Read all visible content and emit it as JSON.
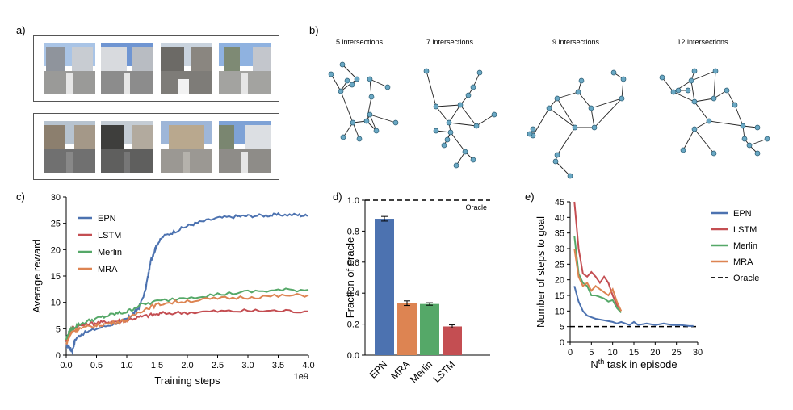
{
  "panels": {
    "a": {
      "label": "a)"
    },
    "b": {
      "label": "b)"
    },
    "c": {
      "label": "c)"
    },
    "d": {
      "label": "d)"
    },
    "e": {
      "label": "e)"
    }
  },
  "graphs": [
    {
      "title": "5 intersections"
    },
    {
      "title": "7 intersections"
    },
    {
      "title": "9 intersections"
    },
    {
      "title": "12 intersections"
    }
  ],
  "colors": {
    "EPN": "#4c72b0",
    "LSTM": "#c44e52",
    "Merlin": "#55a868",
    "MRA": "#dd8452",
    "node": "#6aa8c4"
  },
  "chart_data": [
    {
      "id": "c",
      "type": "line",
      "xlabel": "Training steps",
      "ylabel": "Average reward",
      "x_scale_label": "1e9",
      "xlim": [
        0,
        4.0
      ],
      "ylim": [
        0,
        30
      ],
      "xticks": [
        "0.0",
        "0.5",
        "1.0",
        "1.5",
        "2.0",
        "2.5",
        "3.0",
        "3.5",
        "4.0"
      ],
      "yticks": [
        "0",
        "5",
        "10",
        "15",
        "20",
        "25",
        "30"
      ],
      "legend": [
        "EPN",
        "LSTM",
        "Merlin",
        "MRA"
      ],
      "series": [
        {
          "name": "EPN",
          "x": [
            0,
            0.05,
            0.1,
            0.15,
            0.25,
            0.5,
            0.8,
            1.0,
            1.1,
            1.2,
            1.3,
            1.35,
            1.4,
            1.45,
            1.5,
            1.6,
            1.8,
            2.0,
            2.2,
            2.5,
            2.8,
            3.0,
            3.3,
            3.5,
            3.8,
            4.0
          ],
          "y": [
            2,
            1.5,
            0.8,
            3,
            4,
            5,
            6,
            6.8,
            7.8,
            9,
            12,
            15,
            18,
            19.5,
            21,
            22.5,
            23.5,
            24.5,
            25.2,
            26,
            26.3,
            26.4,
            26.5,
            26.6,
            26.6,
            26.4
          ]
        },
        {
          "name": "LSTM",
          "x": [
            0,
            0.05,
            0.1,
            0.2,
            0.4,
            0.6,
            0.8,
            1.0,
            1.2,
            1.4,
            1.6,
            2.0,
            2.5,
            3.0,
            3.5,
            4.0
          ],
          "y": [
            3,
            4,
            5,
            5.5,
            6,
            6.2,
            6.4,
            6.7,
            7.2,
            7.6,
            7.9,
            8.1,
            8.3,
            8.4,
            8.4,
            8.3
          ]
        },
        {
          "name": "Merlin",
          "x": [
            0,
            0.05,
            0.1,
            0.2,
            0.4,
            0.6,
            0.8,
            1.0,
            1.2,
            1.5,
            2.0,
            2.5,
            3.0,
            3.5,
            4.0
          ],
          "y": [
            3,
            4.5,
            5,
            5.8,
            6.6,
            7.2,
            7.8,
            8.2,
            9.4,
            10.2,
            11,
            11.5,
            12,
            12.3,
            12.4
          ]
        },
        {
          "name": "MRA",
          "x": [
            0,
            0.05,
            0.1,
            0.2,
            0.4,
            0.6,
            0.8,
            1.0,
            1.2,
            1.4,
            1.6,
            2.0,
            2.5,
            3.0,
            3.5,
            4.0
          ],
          "y": [
            2,
            3.5,
            4.5,
            5,
            5.4,
            5.8,
            6.2,
            6.6,
            8.2,
            9.2,
            9.8,
            10.3,
            10.7,
            11,
            11.2,
            11.4
          ]
        }
      ]
    },
    {
      "id": "d",
      "type": "bar",
      "ylabel": "Fraction of oracle",
      "ylim": [
        0,
        1.0
      ],
      "yticks": [
        "0.0",
        "0.2",
        "0.4",
        "0.6",
        "0.8",
        "1.0"
      ],
      "categories": [
        "EPN",
        "MRA",
        "Merlin",
        "LSTM"
      ],
      "values": [
        0.88,
        0.335,
        0.33,
        0.185
      ],
      "errors": [
        0.015,
        0.015,
        0.008,
        0.01
      ],
      "reference_line": {
        "value": 1.0,
        "label": "Oracle"
      }
    },
    {
      "id": "e",
      "type": "line",
      "xlabel_main": "N",
      "xlabel_sup": "th",
      "xlabel_rest": " task in episode",
      "ylabel": "Number of steps to goal",
      "xlim": [
        0,
        30
      ],
      "ylim": [
        0,
        45
      ],
      "xticks": [
        "0",
        "5",
        "10",
        "15",
        "20",
        "25",
        "30"
      ],
      "yticks": [
        "0",
        "5",
        "10",
        "15",
        "20",
        "25",
        "30",
        "35",
        "40",
        "45"
      ],
      "legend": [
        "EPN",
        "LSTM",
        "Merlin",
        "MRA",
        "Oracle"
      ],
      "series": [
        {
          "name": "EPN",
          "x": [
            1,
            2,
            3,
            4,
            5,
            6,
            8,
            10,
            11,
            12,
            13,
            14,
            15,
            16,
            18,
            20,
            22,
            24,
            26,
            28,
            29
          ],
          "y": [
            18,
            13,
            10,
            8.5,
            8,
            7.5,
            7,
            6.5,
            6,
            6.5,
            6,
            5.5,
            6.5,
            5.5,
            6,
            5.5,
            6,
            5.5,
            5.5,
            5.2,
            5.2
          ]
        },
        {
          "name": "LSTM",
          "x": [
            1,
            2,
            3,
            4,
            5,
            6,
            7,
            8,
            9,
            10,
            11,
            12
          ],
          "y": [
            45,
            30,
            22,
            21,
            22.5,
            21,
            19,
            21,
            19,
            15,
            12,
            10
          ]
        },
        {
          "name": "Merlin",
          "x": [
            1,
            2,
            3,
            4,
            5,
            6,
            7,
            8,
            9,
            10,
            11,
            12
          ],
          "y": [
            34,
            22,
            19,
            18,
            15,
            15,
            14.5,
            14,
            13,
            13.5,
            11,
            9.5
          ]
        },
        {
          "name": "MRA",
          "x": [
            1,
            2,
            3,
            4,
            5,
            6,
            7,
            8,
            9,
            10,
            11,
            12
          ],
          "y": [
            30,
            21,
            18,
            19,
            16.5,
            18,
            17,
            16,
            15,
            17,
            13,
            10
          ]
        }
      ],
      "reference_line": {
        "value": 5,
        "label": "Oracle"
      }
    }
  ]
}
